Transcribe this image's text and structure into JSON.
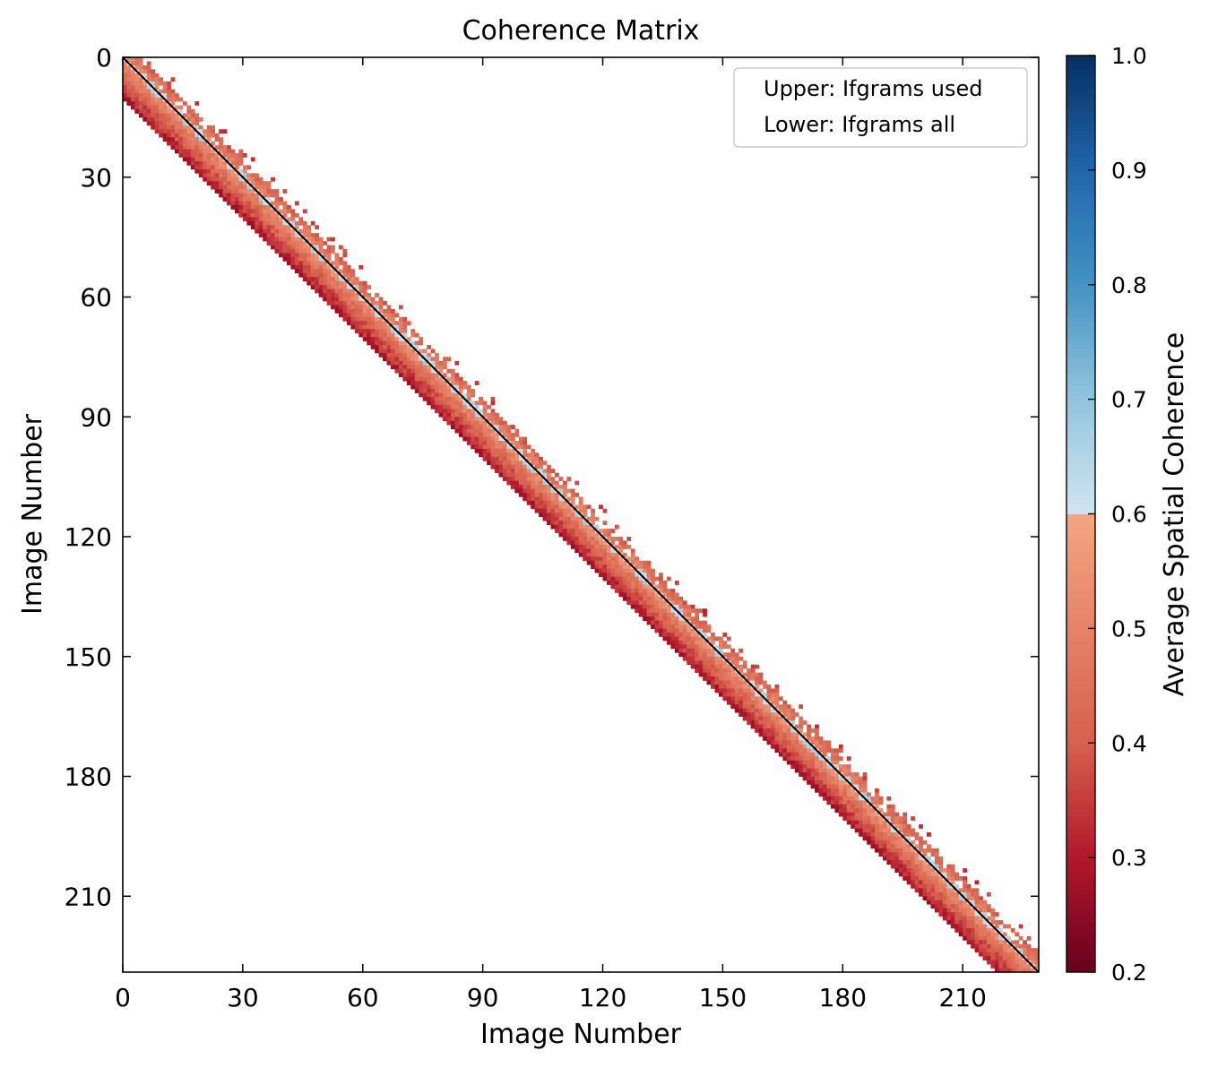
{
  "chart_data": {
    "type": "heatmap",
    "title": "Coherence Matrix",
    "xlabel": "Image Number",
    "ylabel": "Image Number",
    "n_images": 229,
    "xlim": [
      0,
      229
    ],
    "ylim": [
      229,
      0
    ],
    "x_ticks": [
      0,
      30,
      60,
      90,
      120,
      150,
      180,
      210
    ],
    "y_ticks": [
      0,
      30,
      60,
      90,
      120,
      150,
      180,
      210
    ],
    "x_tick_labels": [
      "0",
      "30",
      "60",
      "90",
      "120",
      "150",
      "180",
      "210"
    ],
    "y_tick_labels": [
      "0",
      "30",
      "60",
      "90",
      "120",
      "150",
      "180",
      "210"
    ],
    "diagonal_color": "#000000",
    "lower_band_width": 10,
    "upper_band_width": 4,
    "upper_extra_width": 7,
    "legend": {
      "position": "top-right",
      "entries": [
        "Upper: Ifgrams used",
        "Lower: Ifgrams all"
      ]
    },
    "colorbar": {
      "label": "Average Spatial Coherence",
      "range": [
        0.2,
        1.0
      ],
      "ticks": [
        0.2,
        0.3,
        0.4,
        0.5,
        0.6,
        0.7,
        0.8,
        0.9,
        1.0
      ],
      "tick_labels": [
        "0.2",
        "0.3",
        "0.4",
        "0.5",
        "0.6",
        "0.7",
        "0.8",
        "0.9",
        "1.0"
      ],
      "colormap": "RdBu",
      "color_stops": [
        [
          0.2,
          "#67001f"
        ],
        [
          0.3,
          "#b2182b"
        ],
        [
          0.4,
          "#d6604d"
        ],
        [
          0.6,
          "#f4a582"
        ],
        [
          0.6001,
          "#d1e5f0"
        ],
        [
          0.7,
          "#92c5de"
        ],
        [
          0.8,
          "#4393c3"
        ],
        [
          0.9,
          "#2166ac"
        ],
        [
          1.0,
          "#053061"
        ]
      ]
    }
  }
}
